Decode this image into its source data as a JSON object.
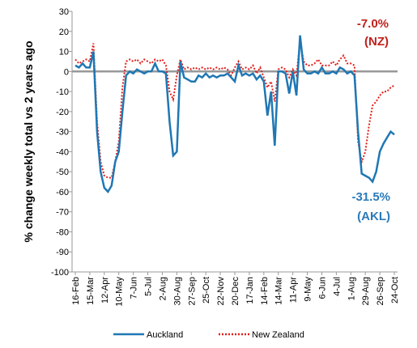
{
  "chart_data": {
    "type": "line",
    "y_label": "% change weekly total  vs 2 years ago",
    "categories": [
      "16-Feb",
      null,
      null,
      null,
      "15-Mar",
      null,
      null,
      null,
      "12-Apr",
      null,
      null,
      null,
      "10-May",
      null,
      null,
      null,
      "7-Jun",
      null,
      null,
      null,
      "5-Jul",
      null,
      null,
      null,
      "2-Aug",
      null,
      null,
      null,
      "30-Aug",
      null,
      null,
      null,
      "27-Sep",
      null,
      null,
      null,
      "25-Oct",
      null,
      null,
      null,
      "22-Nov",
      null,
      null,
      null,
      "20-Dec",
      null,
      null,
      null,
      "17-Jan",
      null,
      null,
      null,
      "14-Feb",
      null,
      null,
      null,
      "14-Mar",
      null,
      null,
      null,
      "11-Apr",
      null,
      null,
      null,
      "9-May",
      null,
      null,
      null,
      "6-Jun",
      null,
      null,
      null,
      "4-Jul",
      null,
      null,
      null,
      "1-Aug",
      null,
      null,
      null,
      "29-Aug",
      null,
      null,
      null,
      "26-Sep",
      null,
      null,
      null,
      "24-Oct"
    ],
    "series": [
      {
        "name": "Auckland",
        "color": "#1f77b4",
        "style": "solid",
        "values": [
          3,
          2,
          4,
          2,
          2,
          10,
          -30,
          -50,
          -58,
          -60,
          -57,
          -45,
          -40,
          -20,
          -2,
          0,
          -1,
          1,
          0,
          -1,
          0,
          0,
          4,
          0,
          0,
          -1,
          -25,
          -42,
          -40,
          5,
          -3,
          -4,
          -5,
          -5,
          -2,
          -3,
          -1,
          -3,
          -2,
          -3,
          -2,
          -2,
          -1,
          -3,
          -5,
          3,
          -2,
          -1,
          -2,
          -1,
          -4,
          -2,
          -5,
          -22,
          -10,
          -37,
          0,
          0,
          -1,
          -11,
          0,
          -12,
          18,
          1,
          -1,
          -1,
          0,
          -1,
          2,
          -1,
          -1,
          0,
          -1,
          2,
          1,
          -1,
          0,
          -2,
          -30,
          -51,
          -52,
          -53,
          -55,
          -50,
          -40,
          -36,
          -33,
          -30,
          -31.5
        ]
      },
      {
        "name": "New Zealand",
        "color": "#e0201b",
        "style": "dotted",
        "values": [
          6,
          4,
          5,
          6,
          5,
          14,
          -25,
          -45,
          -52,
          -53,
          -53,
          -45,
          -35,
          -8,
          5,
          6,
          5,
          6,
          4,
          6,
          5,
          4,
          6,
          5,
          6,
          3,
          -10,
          -14,
          -2,
          6,
          1,
          2,
          1,
          2,
          1,
          2,
          1,
          2,
          1,
          2,
          1,
          2,
          1,
          -2,
          2,
          5,
          1,
          2,
          1,
          3,
          -1,
          2,
          -3,
          -8,
          -5,
          -15,
          1,
          2,
          1,
          -3,
          1,
          -2,
          15,
          5,
          3,
          3,
          4,
          6,
          3,
          3,
          3,
          5,
          3,
          6,
          8,
          4,
          4,
          3,
          -35,
          -45,
          -40,
          -27,
          -17,
          -15,
          -12,
          -10,
          -10,
          -8,
          -7
        ]
      }
    ],
    "annotations": [
      {
        "text": "-7.0%",
        "color": "#c0201b"
      },
      {
        "text": "(NZ)",
        "color": "#c0201b"
      },
      {
        "text": "-31.5%",
        "color": "#2a7ab8"
      },
      {
        "text": "(AKL)",
        "color": "#2a7ab8"
      }
    ],
    "ylim": [
      -100,
      30
    ],
    "yticks": [
      -100,
      -90,
      -80,
      -70,
      -60,
      -50,
      -40,
      -30,
      -20,
      -10,
      0,
      10,
      20,
      30
    ],
    "grid": false,
    "legend": "bottom"
  }
}
